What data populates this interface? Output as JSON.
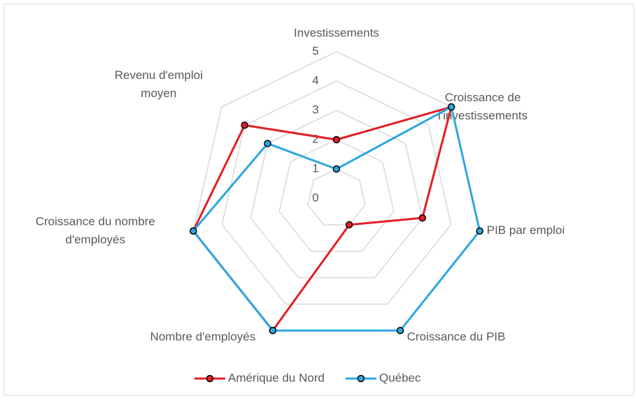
{
  "chart_data": {
    "type": "radar",
    "categories": [
      "Investissements",
      "Croissance de l'investissements",
      "PIB par emploi",
      "Croissance du PIB",
      "Nombre d'employés",
      "Croissance du nombre d'employés",
      "Revenu d'emploi moyen"
    ],
    "series": [
      {
        "name": "Amérique du Nord",
        "color": "#e41e26",
        "values": [
          2,
          5,
          3,
          1,
          5,
          5,
          4
        ]
      },
      {
        "name": "Québec",
        "color": "#2ca7df",
        "values": [
          1,
          5,
          5,
          5,
          5,
          5,
          3
        ]
      }
    ],
    "ylim": [
      0,
      5
    ],
    "yticks": [
      0,
      1,
      2,
      3,
      4,
      5
    ],
    "grid": true,
    "legend": "bottom"
  }
}
